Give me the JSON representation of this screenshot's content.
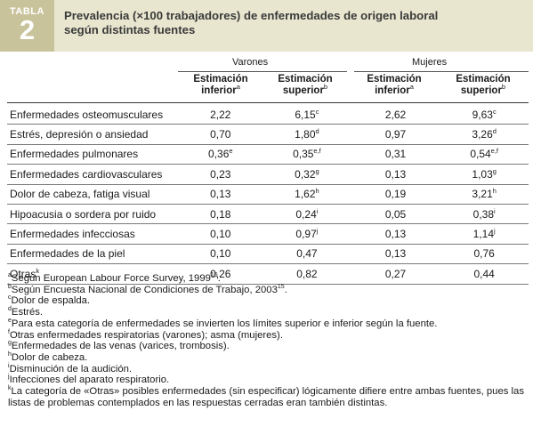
{
  "label": {
    "word": "TABLA",
    "number": "2"
  },
  "title": {
    "line1": "Prevalencia (×100 trabajadores) de enfermedades de origen laboral",
    "line2": "según distintas fuentes"
  },
  "groups": {
    "men": "Varones",
    "women": "Mujeres"
  },
  "subheads": [
    {
      "line1": "Estimación",
      "line2": "inferior",
      "sup": "a"
    },
    {
      "line1": "Estimación",
      "line2": "superior",
      "sup": "b"
    },
    {
      "line1": "Estimación",
      "line2": "inferior",
      "sup": "a"
    },
    {
      "line1": "Estimación",
      "line2": "superior",
      "sup": "b"
    }
  ],
  "rows": [
    {
      "name": "Enfermedades osteomusculares",
      "name_sup": "",
      "cells": [
        [
          "2,22",
          ""
        ],
        [
          "6,15",
          "c"
        ],
        [
          "2,62",
          ""
        ],
        [
          "9,63",
          "c"
        ]
      ]
    },
    {
      "name": "Estrés, depresión o ansiedad",
      "name_sup": "",
      "cells": [
        [
          "0,70",
          ""
        ],
        [
          "1,80",
          "d"
        ],
        [
          "0,97",
          ""
        ],
        [
          "3,26",
          "d"
        ]
      ]
    },
    {
      "name": "Enfermedades pulmonares",
      "name_sup": "",
      "cells": [
        [
          "0,36",
          "e"
        ],
        [
          "0,35",
          "e,f"
        ],
        [
          "0,31",
          ""
        ],
        [
          "0,54",
          "e,f"
        ]
      ]
    },
    {
      "name": "Enfermedades cardiovasculares",
      "name_sup": "",
      "cells": [
        [
          "0,23",
          ""
        ],
        [
          "0,32",
          "g"
        ],
        [
          "0,13",
          ""
        ],
        [
          "1,03",
          "g"
        ]
      ]
    },
    {
      "name": "Dolor de cabeza, fatiga visual",
      "name_sup": "",
      "cells": [
        [
          "0,13",
          ""
        ],
        [
          "1,62",
          "h"
        ],
        [
          "0,19",
          ""
        ],
        [
          "3,21",
          "h"
        ]
      ]
    },
    {
      "name": "Hipoacusia o sordera por ruido",
      "name_sup": "",
      "cells": [
        [
          "0,18",
          ""
        ],
        [
          "0,24",
          "i"
        ],
        [
          "0,05",
          ""
        ],
        [
          "0,38",
          "i"
        ]
      ]
    },
    {
      "name": "Enfermedades infecciosas",
      "name_sup": "",
      "cells": [
        [
          "0,10",
          ""
        ],
        [
          "0,97",
          "j"
        ],
        [
          "0,13",
          ""
        ],
        [
          "1,14",
          "j"
        ]
      ]
    },
    {
      "name": "Enfermedades de la piel",
      "name_sup": "",
      "cells": [
        [
          "0,10",
          ""
        ],
        [
          "0,47",
          ""
        ],
        [
          "0,13",
          ""
        ],
        [
          "0,76",
          ""
        ]
      ]
    },
    {
      "name": "Otras",
      "name_sup": "k",
      "cells": [
        [
          "0,26",
          ""
        ],
        [
          "0,82",
          ""
        ],
        [
          "0,27",
          ""
        ],
        [
          "0,44",
          ""
        ]
      ]
    }
  ],
  "notes": [
    {
      "mark": "a",
      "text": "Según European Labour Force Survey, 1999",
      "ref": "16",
      "tail": "."
    },
    {
      "mark": "b",
      "text": "Según Encuesta Nacional de Condiciones de Trabajo, 2003",
      "ref": "15",
      "tail": "."
    },
    {
      "mark": "c",
      "text": "Dolor de espalda.",
      "ref": "",
      "tail": ""
    },
    {
      "mark": "d",
      "text": "Estrés.",
      "ref": "",
      "tail": ""
    },
    {
      "mark": "e",
      "text": "Para esta categoría de enfermedades se invierten los límites superior e inferior según la fuente.",
      "ref": "",
      "tail": ""
    },
    {
      "mark": "f",
      "text": "Otras enfermedades respiratorias (varones); asma (mujeres).",
      "ref": "",
      "tail": ""
    },
    {
      "mark": "g",
      "text": "Enfermedades de las venas (varices, trombosis).",
      "ref": "",
      "tail": ""
    },
    {
      "mark": "h",
      "text": "Dolor de cabeza.",
      "ref": "",
      "tail": ""
    },
    {
      "mark": "i",
      "text": "Disminución de la audición.",
      "ref": "",
      "tail": ""
    },
    {
      "mark": "j",
      "text": "Infecciones del aparato respiratorio.",
      "ref": "",
      "tail": ""
    },
    {
      "mark": "k",
      "text": "La categoría de «Otras» posibles enfermedades (sin especificar) lógicamente difiere entre ambas fuentes, pues las listas de problemas contemplados en las respuestas cerradas eran también distintas.",
      "ref": "",
      "tail": ""
    }
  ],
  "colors": {
    "header_bg": "#e9e6cf",
    "label_bg": "#c9c39b",
    "label_text": "#ffffff"
  }
}
